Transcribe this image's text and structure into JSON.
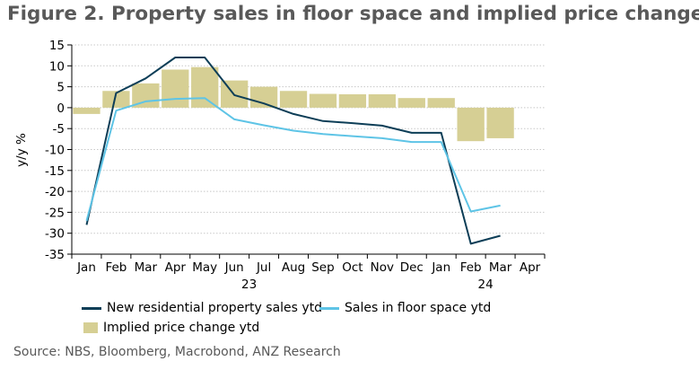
{
  "title": "Figure 2. Property sales in floor space and implied price change",
  "source": "Source: NBS, Bloomberg, Macrobond, ANZ Research",
  "chart_data": {
    "type": "bar",
    "ylabel": "y/y %",
    "ylim": [
      -35,
      15
    ],
    "yticks": [
      15,
      10,
      5,
      0,
      -5,
      -10,
      -15,
      -20,
      -25,
      -30,
      -35
    ],
    "categories": [
      "Jan",
      "Feb",
      "Mar",
      "Apr",
      "May",
      "Jun",
      "Jul",
      "Aug",
      "Sep",
      "Oct",
      "Nov",
      "Dec",
      "Jan",
      "Feb",
      "Mar",
      "Apr"
    ],
    "year_labels": [
      {
        "label": "23",
        "index": 5.5
      },
      {
        "label": "24",
        "index": 13.5
      }
    ],
    "series": [
      {
        "name": "New residential property sales ytd",
        "kind": "line",
        "color": "#0d3e57",
        "values": [
          -28.0,
          3.5,
          7.0,
          12.0,
          12.0,
          3.0,
          1.0,
          -1.5,
          -3.2,
          -3.7,
          -4.3,
          -6.0,
          -6.0,
          -32.5,
          -30.6,
          null
        ]
      },
      {
        "name": "Sales in floor space ytd",
        "kind": "line",
        "color": "#5ec4e6",
        "values": [
          -27.0,
          -0.7,
          1.5,
          2.1,
          2.3,
          -2.8,
          -4.2,
          -5.5,
          -6.3,
          -6.8,
          -7.3,
          -8.2,
          -8.2,
          -24.8,
          -23.4,
          null
        ]
      },
      {
        "name": "Implied price change ytd",
        "kind": "bar",
        "color": "#d6cf94",
        "values": [
          -1.5,
          4.0,
          5.8,
          9.1,
          9.7,
          6.5,
          5.0,
          4.0,
          3.3,
          3.2,
          3.2,
          2.3,
          2.3,
          -8.0,
          -7.3,
          null
        ]
      }
    ]
  },
  "legend": {
    "line1": "New residential property sales ytd",
    "line2": "Sales in floor space ytd",
    "bar": "Implied price change ytd"
  }
}
